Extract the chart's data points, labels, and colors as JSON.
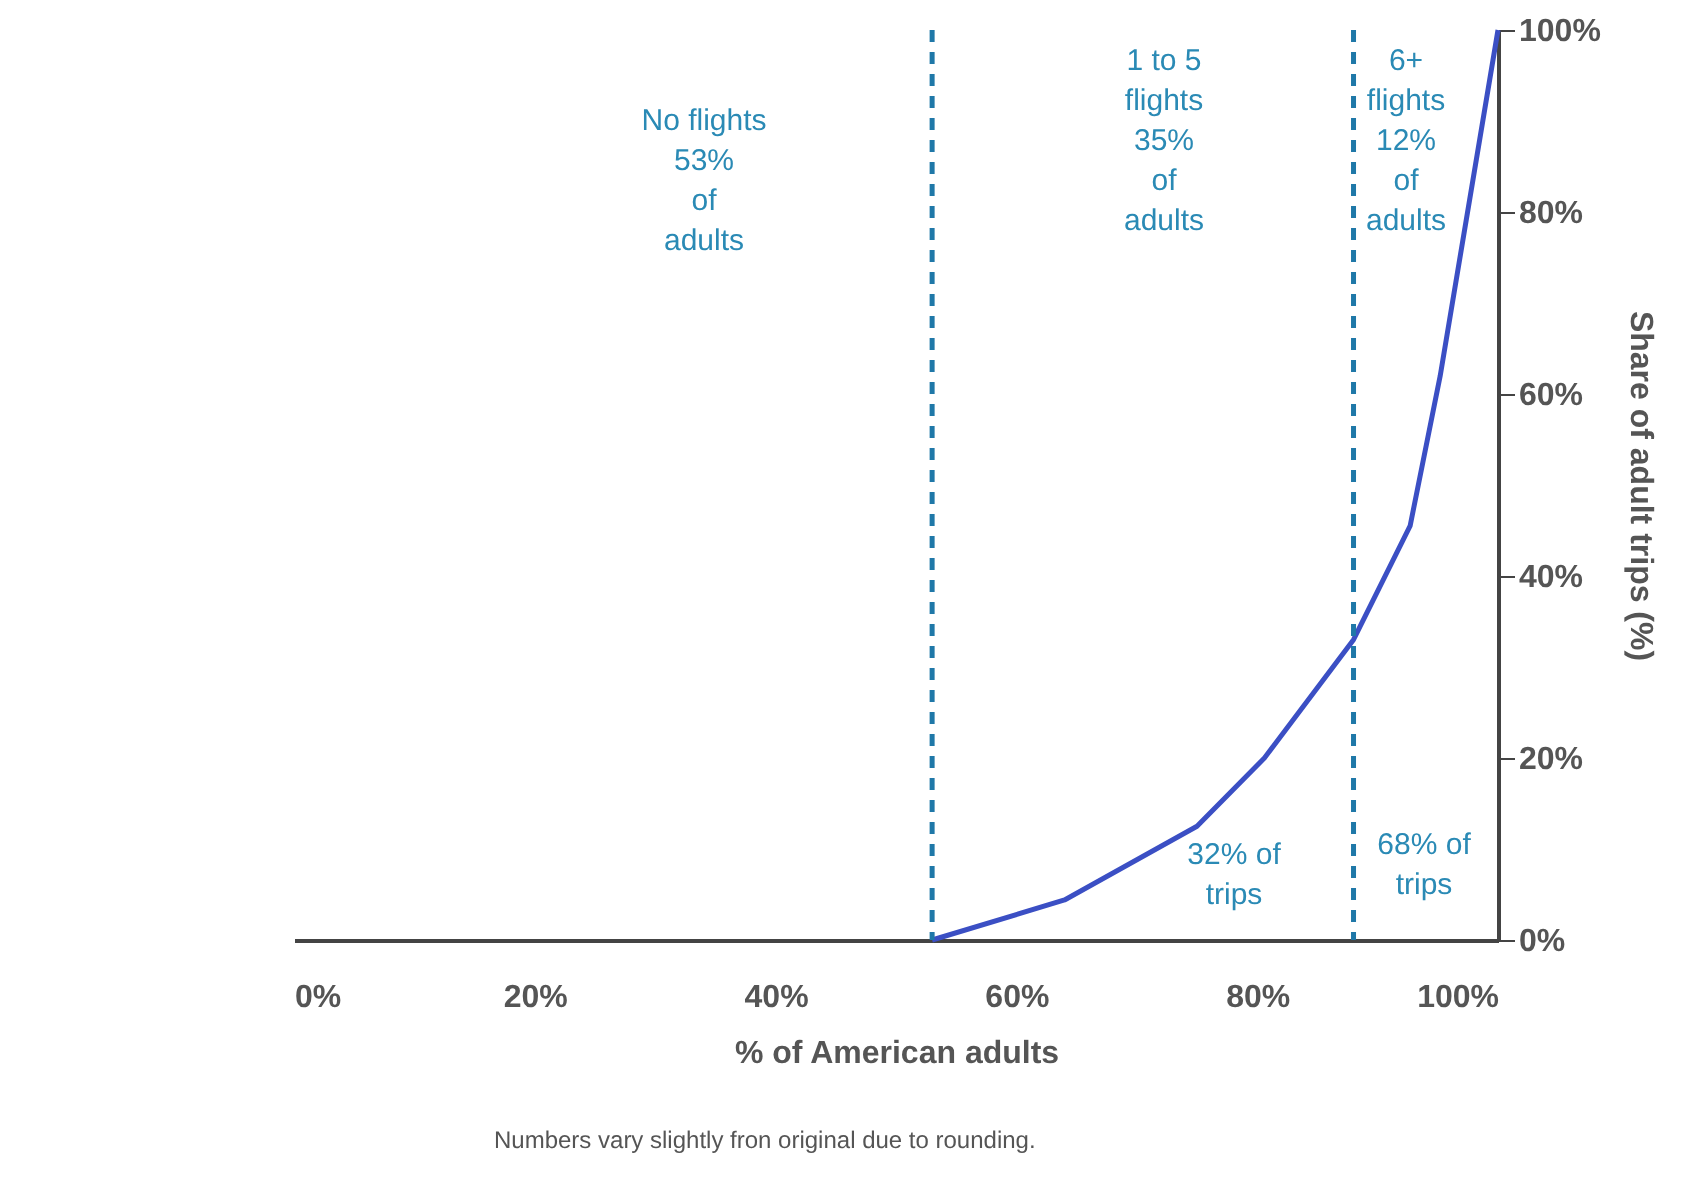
{
  "chart_data": {
    "type": "line",
    "x": [
      53,
      64,
      75,
      80.6,
      88,
      92.7,
      95.2,
      100
    ],
    "series": [
      {
        "color": "#3b4fc4",
        "values": [
          0,
          4.4,
          12.5,
          20,
          33,
          45.5,
          62,
          100
        ]
      }
    ],
    "xlabel": "% of American adults",
    "ylabel": "Share of adult trips (%)",
    "xlim": [
      0,
      100
    ],
    "ylim": [
      0,
      100
    ],
    "xticks": [
      {
        "value": 0,
        "label": "0%"
      },
      {
        "value": 20,
        "label": "20%"
      },
      {
        "value": 40,
        "label": "40%"
      },
      {
        "value": 60,
        "label": "60%"
      },
      {
        "value": 80,
        "label": "80%"
      },
      {
        "value": 100,
        "label": "100%"
      }
    ],
    "yticks": [
      {
        "value": 0,
        "label": "0%"
      },
      {
        "value": 20,
        "label": "20%"
      },
      {
        "value": 40,
        "label": "40%"
      },
      {
        "value": 60,
        "label": "60%"
      },
      {
        "value": 80,
        "label": "80%"
      },
      {
        "value": 100,
        "label": "100%"
      }
    ],
    "ref_lines": [
      {
        "axis": "x",
        "value": 53,
        "color": "#1f78a8",
        "line_style": "dashed"
      },
      {
        "axis": "x",
        "value": 88,
        "color": "#1f78a8",
        "line_style": "dashed"
      }
    ],
    "annotations": [
      "No flights\n\n53%\nof\nadults",
      "1 to 5\nflights\n\n35%\nof\nadults",
      "6+\nflights\n\n12%\nof\nadults",
      "32% of\ntrips",
      "68% of\ntrips",
      "Numbers vary slightly fron original due to rounding."
    ],
    "grid": false,
    "marker": "none",
    "line_style": "solid"
  }
}
